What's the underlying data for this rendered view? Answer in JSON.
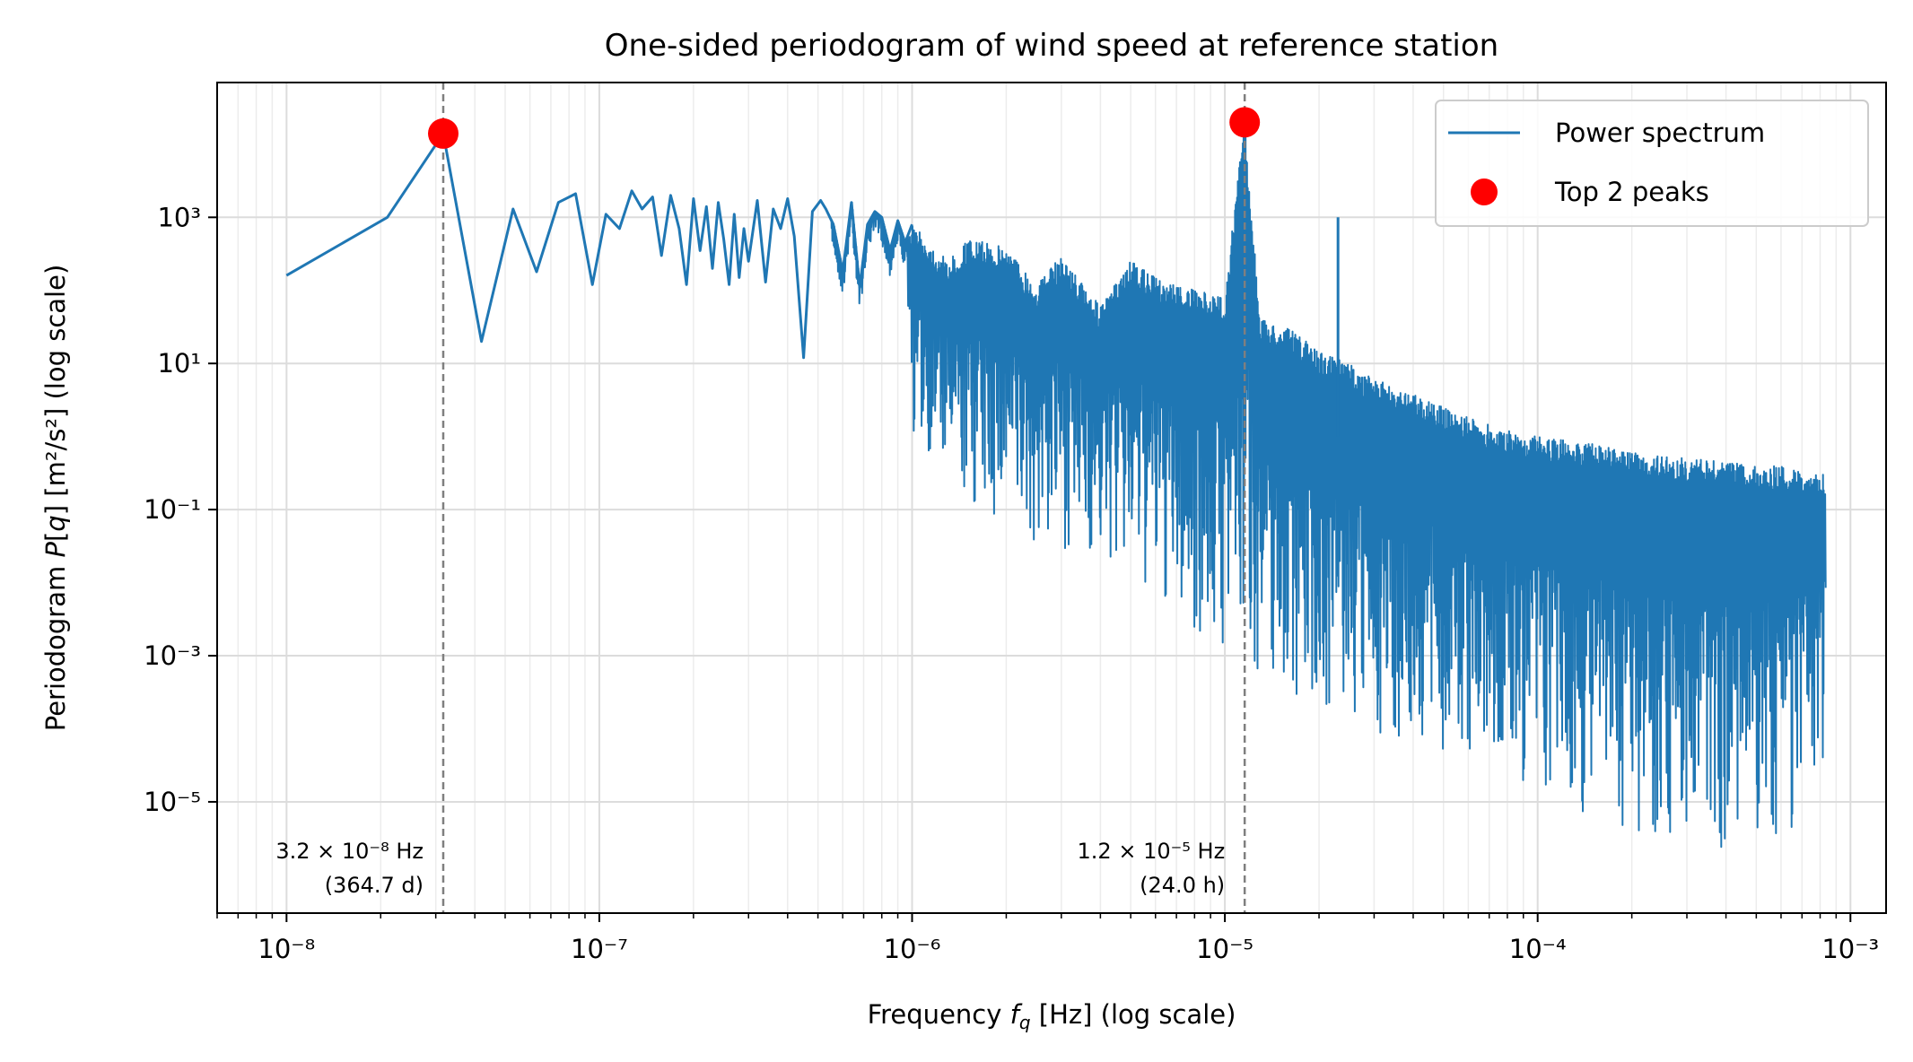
{
  "chart_data": {
    "type": "line",
    "title": "One-sided periodogram of wind speed at reference station",
    "xlabel": "Frequency f_q [Hz] (log scale)",
    "ylabel": "Periodogram P[q] [m²/s²] (log scale)",
    "x_scale": "log",
    "y_scale": "log",
    "xlim": [
      6e-09,
      0.0013
    ],
    "ylim": [
      3e-07,
      70000.0
    ],
    "x_ticks": [
      "10⁻⁸",
      "10⁻⁷",
      "10⁻⁶",
      "10⁻⁵",
      "10⁻⁴",
      "10⁻³"
    ],
    "y_ticks": [
      "10⁻⁵",
      "10⁻³",
      "10⁻¹",
      "10¹",
      "10³"
    ],
    "grid": "on (major and minor)",
    "legend_position": "top-right",
    "colors": {
      "spectrum": "#1f77b4",
      "peaks": "#ff0000",
      "vline": "#7f7f7f"
    },
    "series": [
      {
        "name": "Power spectrum",
        "x": [
          1e-08,
          2.1e-08,
          3.17e-08,
          4.2e-08,
          5.3e-08,
          6.3e-08,
          7.4e-08,
          8.4e-08,
          9.5e-08,
          1.05e-07,
          1.16e-07,
          1.27e-07,
          1.37e-07,
          1.48e-07,
          1.58e-07,
          1.69e-07,
          1.8e-07,
          1.9e-07,
          2e-07,
          2.1e-07,
          2.2e-07,
          2.3e-07,
          2.4e-07,
          2.5e-07,
          2.6e-07,
          2.7e-07,
          2.8e-07,
          2.9e-07,
          3e-07,
          3.2e-07,
          3.4e-07,
          3.6e-07,
          3.8e-07,
          4e-07,
          4.2e-07,
          4.5e-07,
          4.8e-07,
          5.1e-07,
          5.3e-07,
          5.6e-07,
          6e-07,
          6.4e-07,
          6.8e-07,
          7.2e-07,
          7.6e-07,
          8e-07,
          8.5e-07,
          9e-07,
          9.5e-07,
          1e-06,
          1.3e-06,
          1.5e-06,
          2e-06,
          2.5e-06,
          3e-06,
          4e-06,
          5e-06,
          6e-06,
          8e-06,
          1e-05,
          1.15e-05,
          1.3e-05,
          1.6e-05,
          2e-05,
          2.5e-05,
          3e-05,
          4e-05,
          5e-05,
          6e-05,
          8e-05,
          0.0001,
          0.00015,
          0.0002,
          0.0003,
          0.0004,
          0.0005,
          0.0006,
          0.0007,
          0.00083
        ],
        "y": [
          160,
          1000,
          14000,
          20,
          1300,
          180,
          1600,
          2100,
          120,
          1100,
          700,
          2300,
          1300,
          1900,
          300,
          2000,
          700,
          120,
          1800,
          350,
          1400,
          200,
          1600,
          500,
          120,
          1100,
          150,
          700,
          250,
          1700,
          130,
          1300,
          700,
          1800,
          550,
          12,
          1200,
          1700,
          1300,
          800,
          180,
          1600,
          110,
          800,
          1200,
          1000,
          350,
          900,
          450,
          800,
          250,
          500,
          400,
          120,
          300,
          60,
          250,
          150,
          100,
          80,
          20000,
          40,
          30,
          15,
          10,
          6,
          4,
          2.5,
          1.8,
          1.2,
          1,
          0.8,
          0.6,
          0.5,
          0.45,
          0.4,
          0.4,
          0.35,
          0.3
        ],
        "noise_floor_y": [
          160,
          1000,
          14000,
          20,
          1300,
          180,
          1600,
          2100,
          120,
          1100,
          700,
          2300,
          1300,
          1900,
          300,
          2000,
          700,
          120,
          1800,
          350,
          1400,
          200,
          1600,
          500,
          120,
          1100,
          150,
          700,
          250,
          1700,
          130,
          1300,
          700,
          1800,
          550,
          12,
          1200,
          1700,
          1300,
          800,
          180,
          1600,
          110,
          800,
          1200,
          1000,
          350,
          900,
          450,
          1,
          0.3,
          0.1,
          0.05,
          0.03,
          0.03,
          0.02,
          0.01,
          0.005,
          0.002,
          0.001,
          0.0008,
          0.0005,
          0.0003,
          0.0002,
          0.0001,
          8e-05,
          5e-05,
          4e-05,
          3e-05,
          2e-05,
          1e-05,
          6e-06,
          4e-06,
          3e-06,
          2e-06,
          2e-06,
          3e-06,
          4e-06,
          5e-05
        ]
      },
      {
        "name": "Top 2 peaks",
        "x": [
          3.17e-08,
          1.157e-05
        ],
        "y": [
          14000,
          20000
        ]
      }
    ],
    "annotations": [
      {
        "x": 3.17e-08,
        "line1": "3.2 × 10⁻⁸ Hz",
        "line2": "(364.7 d)"
      },
      {
        "x": 1.157e-05,
        "line1": "1.2 × 10⁻⁵ Hz",
        "line2": "(24.0 h)"
      }
    ]
  }
}
